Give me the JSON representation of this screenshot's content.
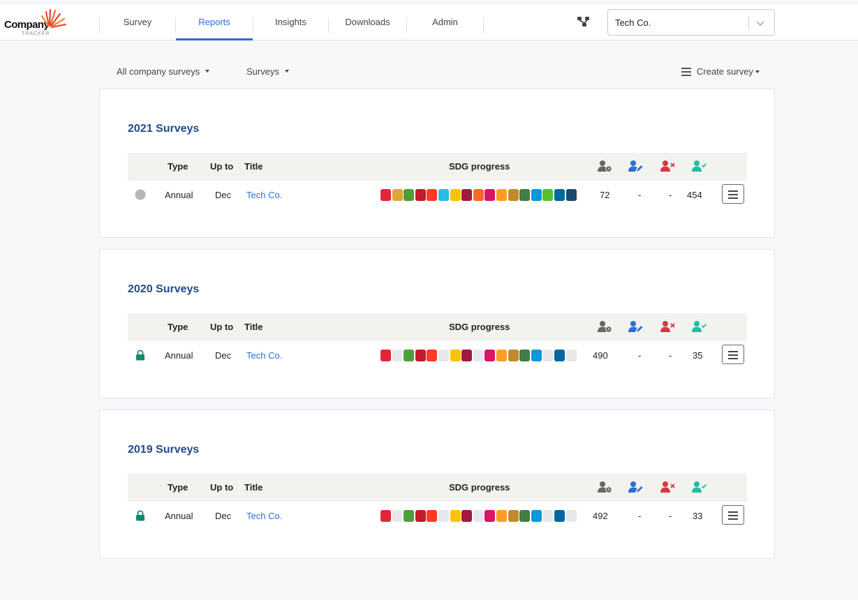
{
  "logo": {
    "word": "Company",
    "sub": "TRACKER"
  },
  "nav": {
    "items": [
      {
        "label": "Survey",
        "active": false
      },
      {
        "label": "Reports",
        "active": true
      },
      {
        "label": "Insights",
        "active": false
      },
      {
        "label": "Downloads",
        "active": false
      },
      {
        "label": "Admin",
        "active": false
      }
    ]
  },
  "company_select": {
    "value": "Tech Co."
  },
  "filters": {
    "all_company_surveys": "All company surveys",
    "surveys": "Surveys",
    "create_survey": "Create survey"
  },
  "table_headers": {
    "type": "Type",
    "up_to": "Up to",
    "title": "Title",
    "sdg": "SDG progress"
  },
  "header_icons": [
    "user-clock-icon",
    "user-edit-icon",
    "user-rejected-icon",
    "user-verified-icon"
  ],
  "colors": {
    "accent": "#2b6fd4",
    "title": "#1f4a8a",
    "edit_icon": "#2b6fd4",
    "reject_icon": "#d9363e",
    "verify_icon": "#1fbf9f",
    "lock": "#16886e",
    "sdg_empty": "#e6e8ec"
  },
  "sdg_colors": [
    "#e5243b",
    "#dda63a",
    "#4c9f38",
    "#c5192d",
    "#ff3a21",
    "#26bde2",
    "#fcc30b",
    "#a21942",
    "#fd6925",
    "#dd1367",
    "#fd9d24",
    "#bf8b2e",
    "#3f7e44",
    "#0a97d9",
    "#56c02b",
    "#00689d",
    "#19486a"
  ],
  "sections": [
    {
      "title": "2021 Surveys",
      "status": "circle",
      "type": "Annual",
      "up_to": "Dec",
      "survey_title": "Tech Co.",
      "sdg_filled": [
        true,
        true,
        true,
        true,
        true,
        true,
        true,
        true,
        true,
        true,
        true,
        true,
        true,
        true,
        true,
        true,
        true
      ],
      "pending": "72",
      "edited": "-",
      "rejected": "-",
      "verified": "454"
    },
    {
      "title": "2020 Surveys",
      "status": "lock",
      "type": "Annual",
      "up_to": "Dec",
      "survey_title": "Tech Co.",
      "sdg_filled": [
        true,
        false,
        true,
        true,
        true,
        false,
        true,
        true,
        false,
        true,
        true,
        true,
        true,
        true,
        false,
        true,
        false
      ],
      "pending": "490",
      "edited": "-",
      "rejected": "-",
      "verified": "35"
    },
    {
      "title": "2019 Surveys",
      "status": "lock",
      "type": "Annual",
      "up_to": "Dec",
      "survey_title": "Tech Co.",
      "sdg_filled": [
        true,
        false,
        true,
        true,
        true,
        false,
        true,
        true,
        false,
        true,
        true,
        true,
        true,
        true,
        false,
        true,
        false
      ],
      "pending": "492",
      "edited": "-",
      "rejected": "-",
      "verified": "33"
    }
  ]
}
